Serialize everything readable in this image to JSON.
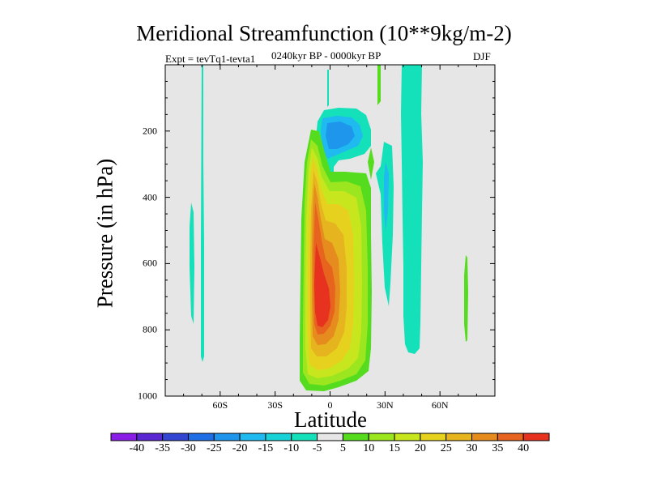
{
  "chart_data": {
    "type": "contour",
    "title": "Meridional Streamfunction (10**9kg/m-2)",
    "experiment": "Expt = tevTq1-tevta1",
    "period": "0240kyr BP - 0000kyr BP",
    "season": "DJF",
    "xlabel": "Latitude",
    "ylabel": "Pressure (in hPa)",
    "xlim": [
      -90,
      90
    ],
    "ylim": [
      1000,
      0
    ],
    "x_ticks": [
      {
        "value": -60,
        "label": "60S"
      },
      {
        "value": -30,
        "label": "30S"
      },
      {
        "value": 0,
        "label": "0"
      },
      {
        "value": 30,
        "label": "30N"
      },
      {
        "value": 60,
        "label": "60N"
      }
    ],
    "y_ticks": [
      200,
      400,
      600,
      800,
      1000
    ],
    "colorbar": {
      "levels": [
        -40,
        -35,
        -30,
        -25,
        -20,
        -15,
        -10,
        -5,
        5,
        10,
        15,
        20,
        25,
        30,
        35,
        40
      ],
      "colors": [
        "#8a1ee6",
        "#5a28d2",
        "#3246d2",
        "#1e6ee6",
        "#1e96eb",
        "#1ebaf0",
        "#19d2d7",
        "#14e1b9",
        "#e6e6e6",
        "#55dc1e",
        "#9be61e",
        "#c8e61e",
        "#e6d21e",
        "#e6b41e",
        "#e68c1e",
        "#e6641e",
        "#e6321e"
      ]
    },
    "features": [
      {
        "name": "Hadley cell (tropical positive)",
        "lat_range": [
          -12,
          22
        ],
        "pressure_range": [
          200,
          1000
        ],
        "max_value": 40
      },
      {
        "name": "Upper-tropo negative cell",
        "lat_range": [
          -7,
          22
        ],
        "pressure_range": [
          130,
          290
        ],
        "min_value": -15
      },
      {
        "name": "NH subtropical negative",
        "lat_range": [
          27,
          37
        ],
        "pressure_range": [
          200,
          650
        ],
        "min_value": -10
      },
      {
        "name": "NH mid-latitude negative column",
        "lat_range": [
          39,
          51
        ],
        "pressure_range": [
          0,
          865
        ],
        "min_value": -5
      },
      {
        "name": "SH high-latitude negative streak",
        "lat_range": [
          -70,
          -65
        ],
        "pressure_range": [
          30,
          890
        ],
        "min_value": -5
      },
      {
        "name": "NH polar positive",
        "lat_range": [
          73,
          76
        ],
        "pressure_range": [
          570,
          840
        ],
        "max_value": 5
      }
    ]
  }
}
